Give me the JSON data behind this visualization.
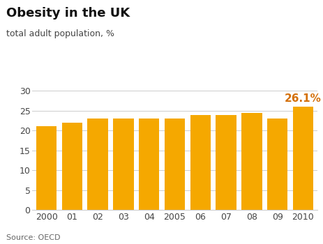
{
  "title": "Obesity in the UK",
  "subtitle": "total adult population, %",
  "source": "Source: OECD",
  "categories": [
    "2000",
    "01",
    "02",
    "03",
    "04",
    "2005",
    "06",
    "07",
    "08",
    "09",
    "2010"
  ],
  "values": [
    21.1,
    22.0,
    23.0,
    23.0,
    23.0,
    23.0,
    24.0,
    24.0,
    24.5,
    23.0,
    26.1
  ],
  "bar_color": "#F5A800",
  "annotation_text": "26.1%",
  "annotation_color": "#D4700A",
  "ylim": [
    0,
    32
  ],
  "yticks": [
    0,
    5,
    10,
    15,
    20,
    25,
    30
  ],
  "background_color": "#ffffff",
  "grid_color": "#cccccc",
  "title_fontsize": 13,
  "subtitle_fontsize": 9,
  "source_fontsize": 8,
  "tick_fontsize": 9,
  "annotation_fontsize": 11
}
